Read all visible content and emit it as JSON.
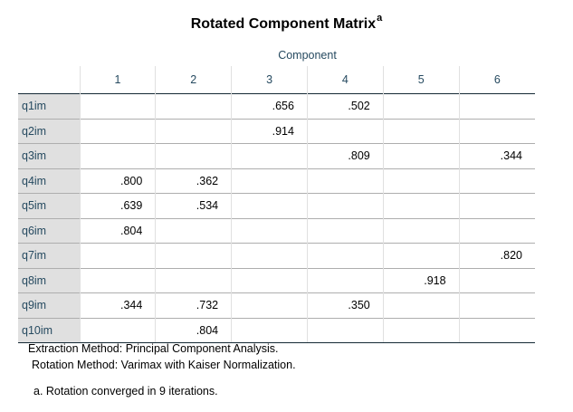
{
  "title": "Rotated Component Matrix",
  "title_superscript": "a",
  "column_group_header": "Component",
  "columns": [
    "1",
    "2",
    "3",
    "4",
    "5",
    "6"
  ],
  "rows": [
    {
      "label": "q1im",
      "values": [
        "",
        "",
        ".656",
        ".502",
        "",
        ""
      ]
    },
    {
      "label": "q2im",
      "values": [
        "",
        "",
        ".914",
        "",
        "",
        ""
      ]
    },
    {
      "label": "q3im",
      "values": [
        "",
        "",
        "",
        ".809",
        "",
        ".344"
      ]
    },
    {
      "label": "q4im",
      "values": [
        ".800",
        ".362",
        "",
        "",
        "",
        ""
      ]
    },
    {
      "label": "q5im",
      "values": [
        ".639",
        ".534",
        "",
        "",
        "",
        ""
      ]
    },
    {
      "label": "q6im",
      "values": [
        ".804",
        "",
        "",
        "",
        "",
        ""
      ]
    },
    {
      "label": "q7im",
      "values": [
        "",
        "",
        "",
        "",
        "",
        ".820"
      ]
    },
    {
      "label": "q8im",
      "values": [
        "",
        "",
        "",
        "",
        ".918",
        ""
      ]
    },
    {
      "label": "q9im",
      "values": [
        ".344",
        ".732",
        "",
        ".350",
        "",
        ""
      ]
    },
    {
      "label": "q10im",
      "values": [
        "",
        ".804",
        "",
        "",
        "",
        ""
      ]
    }
  ],
  "footnotes": {
    "extraction": "Extraction Method: Principal Component Analysis.",
    "rotation": "Rotation Method: Varimax with Kaiser Normalization.",
    "note": "a. Rotation converged in 9 iterations."
  },
  "colors": {
    "header_text": "#264a60",
    "row_label_bg": "#e0e0e0",
    "rule_dark": "#152935",
    "rule_light": "#aeaeae"
  }
}
